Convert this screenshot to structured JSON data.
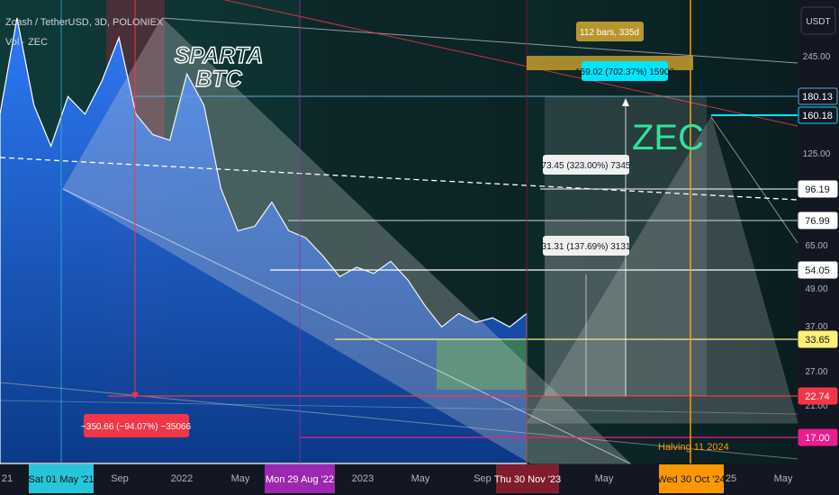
{
  "header": {
    "symbol_line": "Zcash / TetherUSD, 3D, POLONIEX",
    "vol_line": "Vol · ZEC"
  },
  "watermark": {
    "line1": "SPARTA",
    "line2": "BTC"
  },
  "coin_label": "ZEC",
  "currency_button": "USDT",
  "price_axis": {
    "ticks": [
      "245.00",
      "125.00",
      "65.00",
      "49.00",
      "37.00",
      "27.00",
      "21.00",
      "16.00"
    ],
    "badges": [
      {
        "text": "180.13",
        "bg": "#131722",
        "fg": "#ffffff",
        "border": "#5fa8d3"
      },
      {
        "text": "160.18",
        "bg": "#131722",
        "fg": "#ffffff",
        "border": "#00e5ff"
      },
      {
        "text": "96.19",
        "bg": "#ffffff",
        "fg": "#131722",
        "border": "#ffffff"
      },
      {
        "text": "76.99",
        "bg": "#ffffff",
        "fg": "#131722",
        "border": "#ffffff"
      },
      {
        "text": "54.05",
        "bg": "#ffffff",
        "fg": "#131722",
        "border": "#ffffff"
      },
      {
        "text": "33.65",
        "bg": "#fff176",
        "fg": "#131722",
        "border": "#fff176"
      },
      {
        "text": "22.74",
        "bg": "#f23645",
        "fg": "#ffffff",
        "border": "#f23645"
      },
      {
        "text": "17.00",
        "bg": "#e91e8c",
        "fg": "#ffffff",
        "border": "#e91e8c"
      }
    ]
  },
  "time_axis": {
    "labels": [
      "21",
      "Sep",
      "2022",
      "May",
      "2023",
      "May",
      "Sep",
      "May",
      "25",
      "May"
    ],
    "badges": [
      {
        "text": "Sat 01 May '21",
        "bg": "#26c6da",
        "fg": "#131722"
      },
      {
        "text": "Mon 29 Aug '22",
        "bg": "#9c27b0",
        "fg": "#ffffff"
      },
      {
        "text": "Thu 30 Nov '23",
        "bg": "#7f1d2d",
        "fg": "#ffffff"
      },
      {
        "text": "Wed 30 Oct '24",
        "bg": "#ff9800",
        "fg": "#131722"
      }
    ]
  },
  "annotations": {
    "bars_label": "112 bars, 335d",
    "range_top": "159.02 (702.37%) 15902",
    "range_mid": "73.45 (323.00%) 7345",
    "range_low": "31.31 (137.69%) 3131",
    "drawdown": "−350.66 (−94.07%) −35066",
    "halving": "Halving 11 2024"
  },
  "colors": {
    "accent_cyan": "#00e5ff",
    "drawdown_red": "#f23645",
    "halving_orange": "#ff9800",
    "zec_green": "#2ee59d"
  },
  "chart_data": {
    "type": "area",
    "xlabel": "",
    "ylabel": "",
    "log_scale": true,
    "ylim": [
      15,
      300
    ],
    "series": [
      {
        "x": [
          "2021-04",
          "2021-05",
          "2021-06",
          "2021-07",
          "2021-08",
          "2021-09",
          "2021-10",
          "2021-11",
          "2021-12",
          "2022-01",
          "2022-02",
          "2022-03",
          "2022-04",
          "2022-05",
          "2022-06",
          "2022-07",
          "2022-08",
          "2022-09",
          "2022-10",
          "2022-11",
          "2022-12",
          "2023-01",
          "2023-02",
          "2023-03",
          "2023-04",
          "2023-05",
          "2023-06",
          "2023-07",
          "2023-08",
          "2023-09",
          "2023-10",
          "2023-11"
        ],
        "values": [
          140,
          290,
          150,
          110,
          160,
          140,
          180,
          250,
          140,
          120,
          115,
          190,
          150,
          80,
          58,
          60,
          72,
          58,
          55,
          48,
          41,
          44,
          42,
          46,
          40,
          33,
          28,
          31,
          29,
          30,
          28,
          31
        ]
      }
    ]
  }
}
